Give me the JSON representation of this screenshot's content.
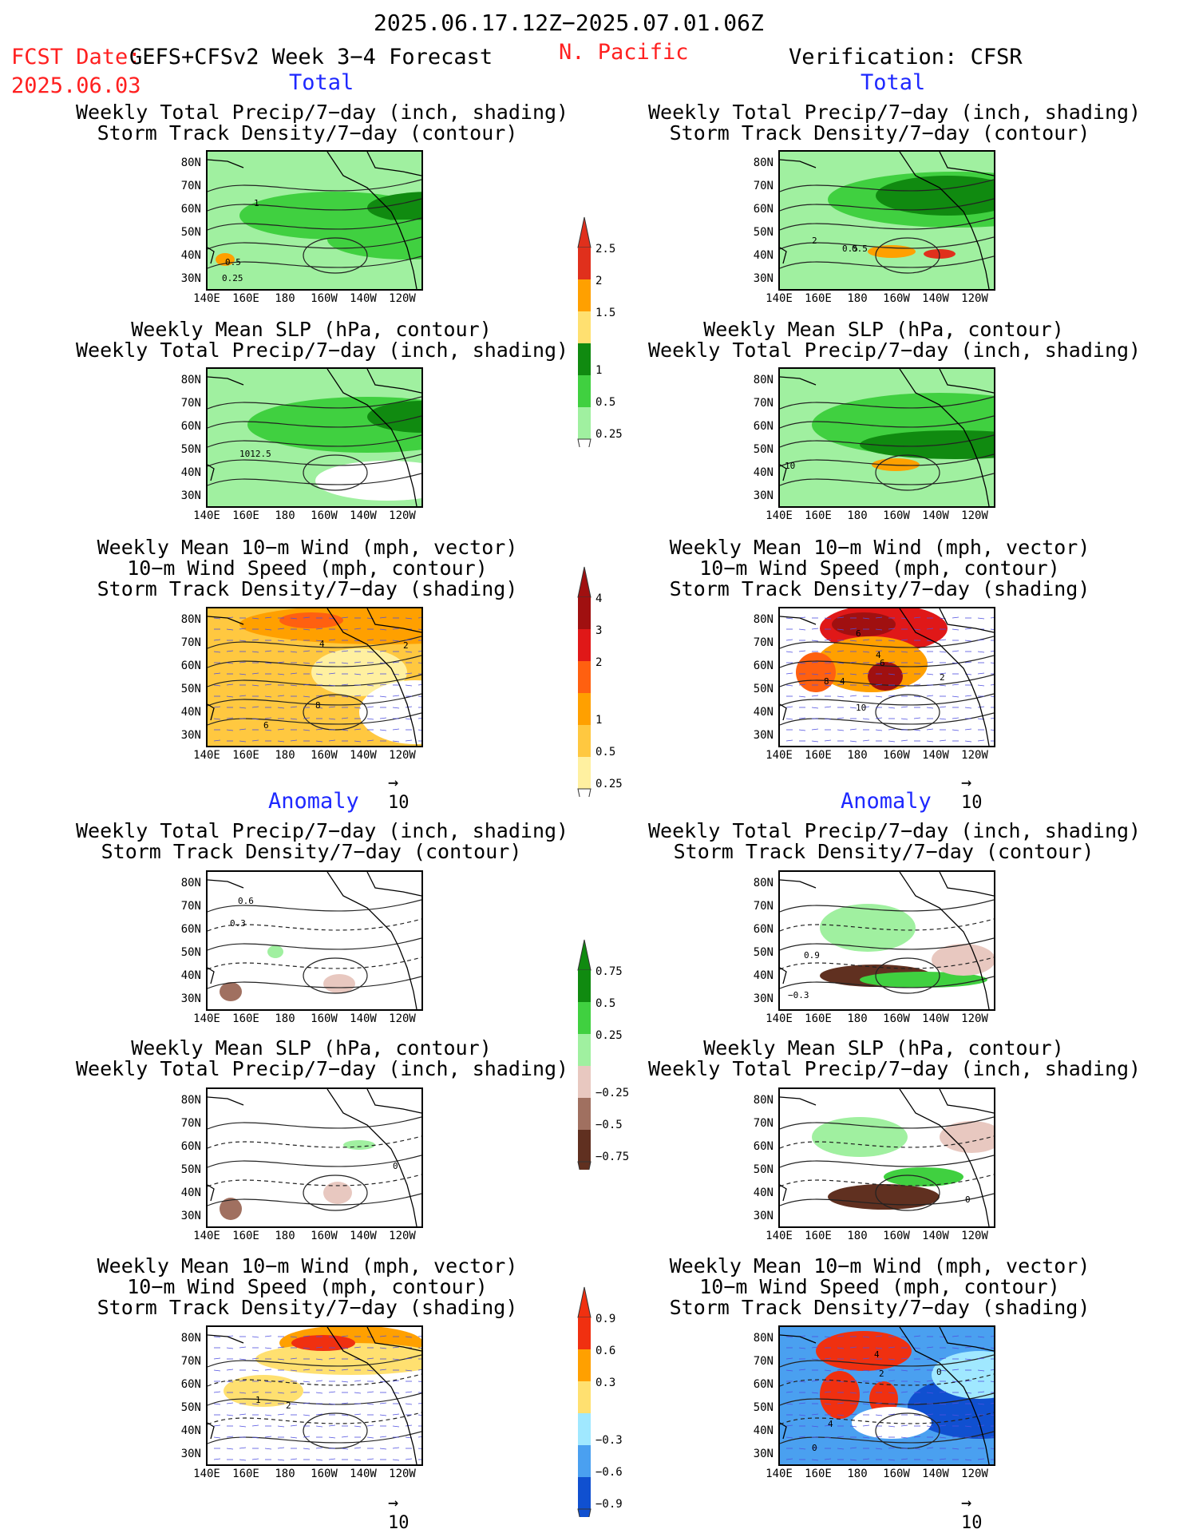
{
  "header": {
    "period": "2025.06.17.12Z−2025.07.01.06Z",
    "fcst_label": "FCST Date:",
    "fcst_model": "GEFS+CFSv2 Week 3−4 Forecast",
    "fcst_date": "2025.06.03",
    "region": "N. Pacific",
    "verification": "Verification: CFSR",
    "total_label": "Total",
    "anomaly_label": "Anomaly"
  },
  "panel_titles": {
    "precip_std": "Weekly Total Precip/7−day (inch, shading)\nStorm Track Density/7−day (contour)",
    "slp_precip": "Weekly Mean SLP (hPa, contour)\nWeekly Total Precip/7−day (inch, shading)",
    "wind_std": "Weekly Mean 10−m Wind (mph, vector)\n10−m Wind Speed (mph, contour)\nStorm Track Density/7−day (shading)"
  },
  "axes": {
    "lat_labels": [
      "80N",
      "70N",
      "60N",
      "50N",
      "40N",
      "30N"
    ],
    "lon_labels": [
      "140E",
      "160E",
      "180",
      "160W",
      "140W",
      "120W"
    ]
  },
  "vector_ref": "10",
  "colorbars": {
    "precip_total": {
      "labels": [
        "2.5",
        "2",
        "1.5",
        "1",
        "0.5",
        "0.25"
      ],
      "colors": [
        "#e0301c",
        "#ffa000",
        "#ffe070",
        "#108a10",
        "#40d040",
        "#a0f0a0"
      ]
    },
    "std_total": {
      "labels": [
        "4",
        "3",
        "2",
        "1",
        "0.5",
        "0.25"
      ],
      "colors": [
        "#a01010",
        "#e01818",
        "#ff6010",
        "#ffa000",
        "#ffc840",
        "#fff0a0"
      ]
    },
    "precip_anom": {
      "labels": [
        "0.75",
        "0.5",
        "0.25",
        "−0.25",
        "−0.5",
        "−0.75"
      ],
      "colors": [
        "#108a10",
        "#40d040",
        "#a0f0a0",
        "#e8c8c0",
        "#a07060",
        "#603020"
      ]
    },
    "std_anom": {
      "labels": [
        "0.9",
        "0.6",
        "0.3",
        "−0.3",
        "−0.6",
        "−0.9"
      ],
      "colors": [
        "#f03010",
        "#ffa000",
        "#ffe070",
        "#a0e8ff",
        "#4aa0f0",
        "#1050d0"
      ]
    }
  },
  "panel_labels": {
    "p1": [
      "1",
      "0.5",
      "0.25"
    ],
    "p2": [
      "2",
      "0.5",
      "0.5"
    ],
    "p3": [
      "1012.5"
    ],
    "p4": [
      "10"
    ],
    "p5": [
      "4",
      "2",
      "8",
      "6"
    ],
    "p6": [
      "6",
      "4",
      "8",
      "4",
      "6",
      "2",
      "10"
    ],
    "p7": [
      "0.6",
      "0.3"
    ],
    "p8": [
      "0.9",
      "−0.3"
    ],
    "p9": [
      "0"
    ],
    "p10": [
      "0"
    ],
    "p11": [
      "1",
      "2"
    ],
    "p12": [
      "4",
      "2",
      "0",
      "4",
      "0"
    ]
  },
  "chart_data": [
    {
      "type": "heatmap",
      "title": "Weekly Total Precip/7−day (inch, shading) / Storm Track Density/7−day (contour)",
      "section": "Total",
      "source": "GEFS+CFSv2 Week 3−4 Forecast",
      "contour_labels": [
        1,
        0.5,
        0.25
      ]
    },
    {
      "type": "heatmap",
      "title": "Weekly Total Precip/7−day (inch, shading) / Storm Track Density/7−day (contour)",
      "section": "Total",
      "source": "Verification: CFSR",
      "contour_labels": [
        2,
        0.5,
        0.5
      ]
    },
    {
      "type": "heatmap",
      "title": "Weekly Mean SLP (hPa, contour) / Weekly Total Precip/7−day (inch, shading)",
      "section": "Total",
      "source": "GEFS+CFSv2 Week 3−4 Forecast",
      "contour_labels": [
        1012.5
      ]
    },
    {
      "type": "heatmap",
      "title": "Weekly Mean SLP (hPa, contour) / Weekly Total Precip/7−day (inch, shading)",
      "section": "Total",
      "source": "Verification: CFSR",
      "contour_labels": [
        10
      ]
    },
    {
      "type": "heatmap",
      "title": "Weekly Mean 10−m Wind (mph, vector) / 10−m Wind Speed (mph, contour) / Storm Track Density/7−day (shading)",
      "section": "Total",
      "source": "GEFS+CFSv2 Week 3−4 Forecast",
      "contour_labels": [
        4,
        2,
        8,
        6
      ]
    },
    {
      "type": "heatmap",
      "title": "Weekly Mean 10−m Wind (mph, vector) / 10−m Wind Speed (mph, contour) / Storm Track Density/7−day (shading)",
      "section": "Total",
      "source": "Verification: CFSR",
      "contour_labels": [
        6,
        4,
        8,
        4,
        6,
        2,
        10
      ]
    },
    {
      "type": "heatmap",
      "title": "Weekly Total Precip/7−day (inch, shading) / Storm Track Density/7−day (contour)",
      "section": "Anomaly",
      "source": "GEFS+CFSv2 Week 3−4 Forecast",
      "contour_labels": [
        0.6,
        0.3
      ]
    },
    {
      "type": "heatmap",
      "title": "Weekly Total Precip/7−day (inch, shading) / Storm Track Density/7−day (contour)",
      "section": "Anomaly",
      "source": "Verification: CFSR",
      "contour_labels": [
        0.9,
        -0.3
      ]
    },
    {
      "type": "heatmap",
      "title": "Weekly Mean SLP (hPa, contour) / Weekly Total Precip/7−day (inch, shading)",
      "section": "Anomaly",
      "source": "GEFS+CFSv2 Week 3−4 Forecast",
      "contour_labels": [
        0
      ]
    },
    {
      "type": "heatmap",
      "title": "Weekly Mean SLP (hPa, contour) / Weekly Total Precip/7−day (inch, shading)",
      "section": "Anomaly",
      "source": "Verification: CFSR",
      "contour_labels": [
        0
      ]
    },
    {
      "type": "heatmap",
      "title": "Weekly Mean 10−m Wind (mph, vector) / 10−m Wind Speed (mph, contour) / Storm Track Density/7−day (shading)",
      "section": "Anomaly",
      "source": "GEFS+CFSv2 Week 3−4 Forecast",
      "contour_labels": [
        1,
        2
      ]
    },
    {
      "type": "heatmap",
      "title": "Weekly Mean 10−m Wind (mph, vector) / 10−m Wind Speed (mph, contour) / Storm Track Density/7−day (shading)",
      "section": "Anomaly",
      "source": "Verification: CFSR",
      "contour_labels": [
        4,
        2,
        0,
        4,
        0
      ]
    }
  ]
}
